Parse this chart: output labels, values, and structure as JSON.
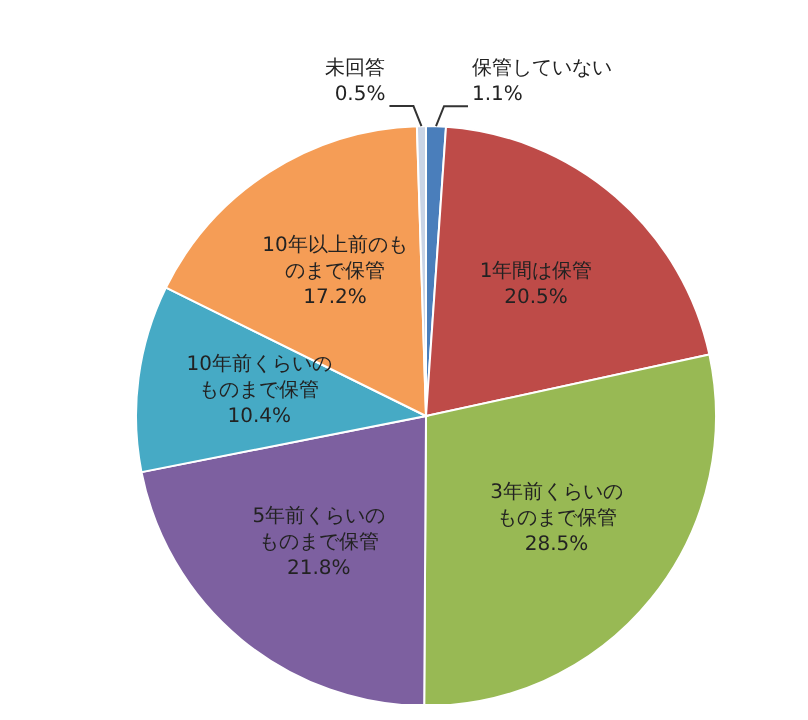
{
  "chart_data": {
    "type": "pie",
    "categories": [
      "保管していない",
      "1年間は保管",
      "3年前くらいのものまで保管",
      "5年前くらいのものまで保管",
      "10年前くらいのものまで保管",
      "10年以上前のものまで保管",
      "未回答"
    ],
    "values": [
      1.1,
      20.5,
      28.5,
      21.8,
      10.4,
      17.2,
      0.5
    ],
    "colors": [
      "#4a7ebb",
      "#be4b48",
      "#98b954",
      "#7d60a0",
      "#46aac5",
      "#f59d56",
      "#c9d4e6"
    ],
    "value_labels": [
      "1.1%",
      "20.5%",
      "28.5%",
      "21.8%",
      "10.4%",
      "17.2%",
      "0.5%"
    ]
  }
}
